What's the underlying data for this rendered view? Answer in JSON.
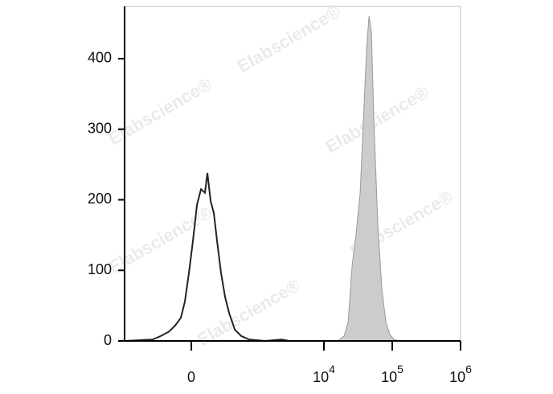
{
  "chart_data": {
    "type": "histogram-overlay",
    "watermark": "Elabscience®",
    "xscale": "asinh",
    "xlim": [
      -1074,
      1000000
    ],
    "xticks": [
      {
        "value": 0,
        "label": "0"
      },
      {
        "value": 10000,
        "label": "10",
        "exponent": "4"
      },
      {
        "value": 100000,
        "label": "10",
        "exponent": "5"
      },
      {
        "value": 1000000,
        "label": "10",
        "exponent": "6"
      }
    ],
    "ylim": [
      0,
      474
    ],
    "yticks": [
      0,
      100,
      200,
      300,
      400
    ],
    "series": [
      {
        "color": "#222222",
        "fill": "none",
        "x": [
          -1074,
          -391,
          -280,
          -191,
          -130,
          -82,
          -50,
          -19,
          12,
          44,
          76,
          109,
          130,
          160,
          191,
          225,
          270,
          321,
          379,
          469,
          595,
          790,
          1374,
          2377,
          3121,
          9229
        ],
        "values": [
          0,
          2,
          7,
          13,
          22,
          33,
          56,
          96,
          141,
          193,
          215,
          210,
          238,
          198,
          181,
          141,
          96,
          62,
          39,
          16,
          7,
          2,
          0,
          2,
          0,
          0
        ]
      },
      {
        "color": "#999999",
        "fill": "#cccccc",
        "x": [
          15870,
          19720,
          22600,
          25880,
          29640,
          33920,
          37800,
          42140,
          45690,
          49560,
          53770,
          61560,
          70490,
          80680,
          92400,
          105800,
          138800,
          1000000
        ],
        "values": [
          0,
          7,
          27,
          107,
          153,
          210,
          312,
          415,
          460,
          438,
          312,
          164,
          73,
          27,
          9,
          2,
          0,
          0
        ]
      }
    ]
  }
}
